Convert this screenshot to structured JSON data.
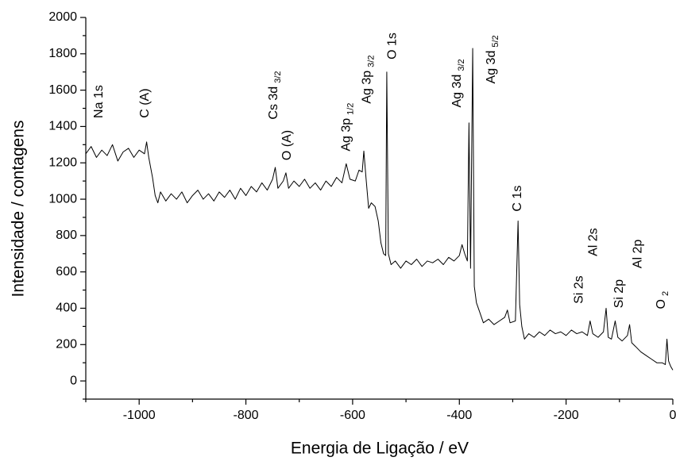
{
  "chart_data": {
    "type": "line",
    "x_label": "Energia de Ligação / eV",
    "y_label": "Intensidade / contagens",
    "xlim": [
      -1100,
      0
    ],
    "ylim": [
      -100,
      2000
    ],
    "xticks": [
      -1000,
      -800,
      -600,
      -400,
      -200,
      0
    ],
    "yticks": [
      0,
      200,
      400,
      600,
      800,
      1000,
      1200,
      1400,
      1600,
      1800,
      2000
    ],
    "xminor_ticks": [
      -1100,
      -900,
      -700,
      -500,
      -300,
      -100
    ],
    "yminor_ticks": [
      -100,
      100,
      300,
      500,
      700,
      900,
      1100,
      1300,
      1500,
      1700,
      1900
    ],
    "color": "#000000",
    "x": [
      -1100,
      -1090,
      -1080,
      -1070,
      -1060,
      -1050,
      -1040,
      -1030,
      -1020,
      -1010,
      -1000,
      -990,
      -986,
      -982,
      -975,
      -970,
      -965,
      -960,
      -950,
      -940,
      -930,
      -920,
      -910,
      -900,
      -890,
      -880,
      -870,
      -860,
      -850,
      -840,
      -830,
      -820,
      -810,
      -800,
      -790,
      -780,
      -770,
      -760,
      -750,
      -745,
      -740,
      -730,
      -725,
      -720,
      -710,
      -700,
      -690,
      -680,
      -670,
      -660,
      -650,
      -640,
      -630,
      -620,
      -612,
      -605,
      -595,
      -588,
      -582,
      -579,
      -575,
      -570,
      -565,
      -558,
      -552,
      -547,
      -542,
      -538,
      -536,
      -533,
      -528,
      -520,
      -510,
      -500,
      -490,
      -480,
      -470,
      -460,
      -450,
      -440,
      -430,
      -420,
      -410,
      -400,
      -395,
      -390,
      -385,
      -382,
      -379,
      -375,
      -372,
      -368,
      -362,
      -355,
      -345,
      -335,
      -325,
      -315,
      -310,
      -305,
      -295,
      -290,
      -287,
      -283,
      -278,
      -270,
      -260,
      -250,
      -240,
      -230,
      -220,
      -210,
      -200,
      -190,
      -180,
      -170,
      -160,
      -155,
      -150,
      -140,
      -130,
      -125,
      -121,
      -115,
      -108,
      -103,
      -95,
      -85,
      -81,
      -77,
      -70,
      -60,
      -50,
      -40,
      -30,
      -20,
      -14,
      -11,
      -8,
      -4,
      0
    ],
    "values": [
      1250,
      1290,
      1230,
      1270,
      1240,
      1300,
      1210,
      1260,
      1280,
      1230,
      1270,
      1250,
      1315,
      1230,
      1120,
      1020,
      980,
      1040,
      990,
      1030,
      1000,
      1040,
      980,
      1020,
      1050,
      1000,
      1030,
      990,
      1040,
      1010,
      1050,
      1000,
      1060,
      1020,
      1070,
      1040,
      1090,
      1050,
      1110,
      1175,
      1060,
      1100,
      1145,
      1060,
      1100,
      1070,
      1110,
      1060,
      1090,
      1050,
      1100,
      1070,
      1120,
      1090,
      1195,
      1110,
      1100,
      1160,
      1150,
      1265,
      1120,
      950,
      980,
      960,
      880,
      760,
      700,
      690,
      1700,
      700,
      640,
      660,
      620,
      660,
      640,
      670,
      630,
      660,
      650,
      670,
      640,
      680,
      660,
      690,
      750,
      700,
      660,
      1420,
      620,
      1830,
      520,
      430,
      380,
      320,
      340,
      310,
      330,
      350,
      390,
      320,
      330,
      880,
      420,
      300,
      230,
      260,
      240,
      270,
      250,
      280,
      260,
      270,
      250,
      280,
      260,
      270,
      250,
      330,
      260,
      240,
      270,
      400,
      240,
      230,
      330,
      240,
      220,
      250,
      310,
      210,
      190,
      160,
      140,
      120,
      100,
      100,
      90,
      230,
      110,
      80,
      60
    ],
    "annotations": [
      {
        "text": "Na 1s",
        "x": -1075,
        "y": 1537
      },
      {
        "text": "C (A)",
        "x": -988,
        "y": 1528
      },
      {
        "text": "Cs 3d",
        "sub": "3/2",
        "x": -747,
        "y": 1572
      },
      {
        "text": "O (A)",
        "x": -722,
        "y": 1297
      },
      {
        "text": "Ag 3p",
        "sub": "1/2",
        "x": -611,
        "y": 1397
      },
      {
        "text": "Ag 3p",
        "sub": "3/2",
        "x": -572,
        "y": 1659
      },
      {
        "text": "O 1s",
        "x": -525,
        "y": 1843
      },
      {
        "text": "Ag 3d",
        "sub": "3/2",
        "x": -403,
        "y": 1638
      },
      {
        "text": "Ag 3d",
        "sub": "5/2",
        "x": -339,
        "y": 1769
      },
      {
        "text": "C 1s",
        "x": -290,
        "y": 1004
      },
      {
        "text": "Si 2s",
        "x": -175,
        "y": 502
      },
      {
        "text": "Al 2s",
        "x": -148,
        "y": 764
      },
      {
        "text": "Si 2p",
        "x": -100,
        "y": 480
      },
      {
        "text": "Al 2p",
        "x": -65,
        "y": 699
      },
      {
        "text": "O",
        "sub": "2",
        "x": -21,
        "y": 445
      }
    ]
  }
}
